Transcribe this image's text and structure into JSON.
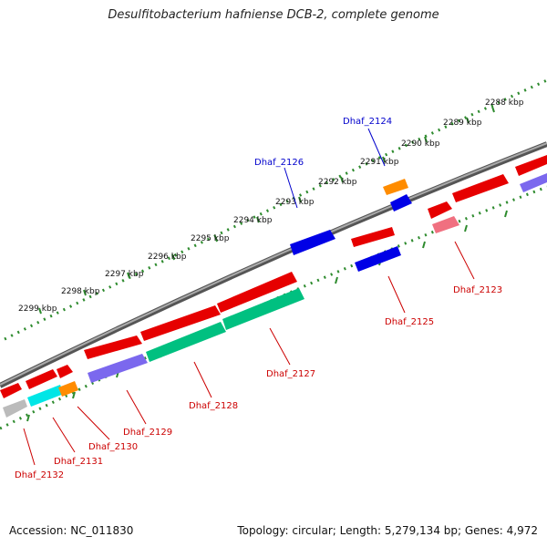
{
  "title": "Desulfitobacterium hafniense DCB-2, complete genome",
  "footer": {
    "accession": "Accession: NC_011830",
    "topology": "Topology: circular; Length: 5,279,134 bp; Genes: 4,972"
  },
  "colors": {
    "backbone": "#808080",
    "tick_ring": "#2e8b2e",
    "label_red": "#cc0000",
    "label_blue": "#0000cc"
  },
  "kbp_labels": [
    {
      "label": "2288 kbp"
    },
    {
      "label": "2289 kbp"
    },
    {
      "label": "2290 kbp"
    },
    {
      "label": "2291 kbp"
    },
    {
      "label": "2292 kbp"
    },
    {
      "label": "2293 kbp"
    },
    {
      "label": "2294 kbp"
    },
    {
      "label": "2295 kbp"
    },
    {
      "label": "2296 kbp"
    },
    {
      "label": "2297 kbp"
    },
    {
      "label": "2298 kbp"
    },
    {
      "label": "2299 kbp"
    }
  ],
  "genes": [
    {
      "label": "Dhaf_2123",
      "color": "red"
    },
    {
      "label": "Dhaf_2124",
      "color": "blue"
    },
    {
      "label": "Dhaf_2125",
      "color": "red"
    },
    {
      "label": "Dhaf_2126",
      "color": "blue"
    },
    {
      "label": "Dhaf_2127",
      "color": "red"
    },
    {
      "label": "Dhaf_2128",
      "color": "red"
    },
    {
      "label": "Dhaf_2129",
      "color": "red"
    },
    {
      "label": "Dhaf_2130",
      "color": "red"
    },
    {
      "label": "Dhaf_2131",
      "color": "red"
    },
    {
      "label": "Dhaf_2132",
      "color": "red"
    }
  ]
}
